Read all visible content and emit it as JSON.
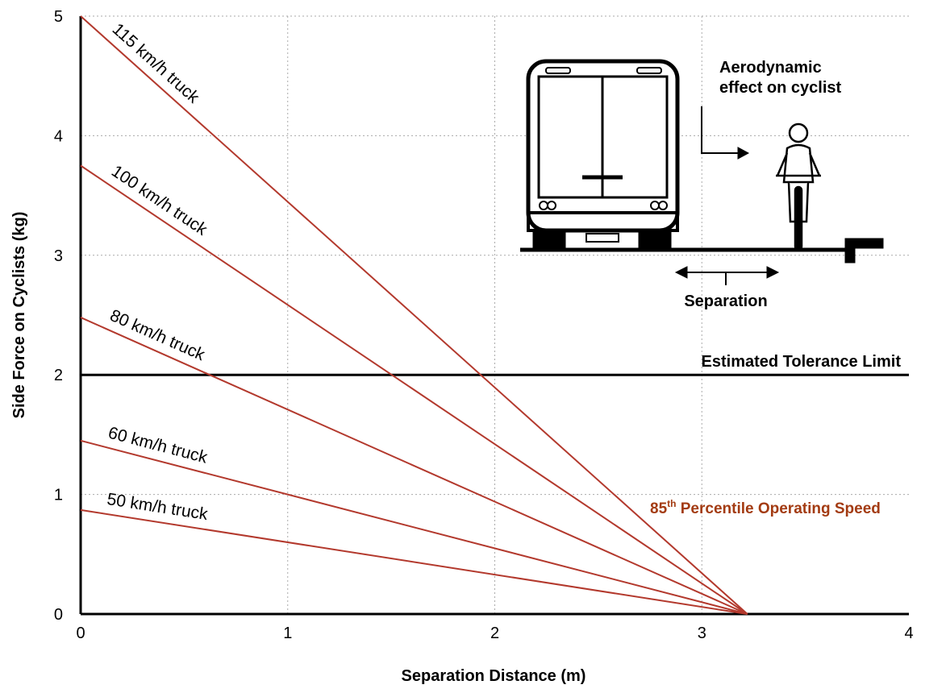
{
  "chart_data": {
    "type": "line",
    "x_label": "Separation Distance (m)",
    "y_label": "Side Force on Cyclists (kg)",
    "x": [
      0,
      3.22
    ],
    "series": [
      {
        "name": "115 km/h truck",
        "color": "#b3392d",
        "values": [
          5,
          0
        ]
      },
      {
        "name": "100 km/h truck",
        "color": "#b3392d",
        "values": [
          3.75,
          0
        ]
      },
      {
        "name": "80 km/h truck",
        "color": "#b3392d",
        "values": [
          2.48,
          0
        ]
      },
      {
        "name": "60 km/h truck",
        "color": "#b3392d",
        "values": [
          1.45,
          0
        ]
      },
      {
        "name": "50 km/h truck",
        "color": "#b3392d",
        "values": [
          0.87,
          0
        ]
      }
    ],
    "reference_line": {
      "value": 2,
      "label": "Estimated Tolerance Limit",
      "color": "#000000"
    },
    "annotation": {
      "parts": [
        "85",
        "th",
        " Percentile Operating Speed"
      ],
      "color": "#a33b12"
    },
    "inset": {
      "effect_label": [
        "Aerodynamic",
        "effect on cyclist"
      ],
      "separation_label": "Separation"
    },
    "xlim": [
      0,
      4
    ],
    "ylim": [
      0,
      5
    ],
    "xticks": [
      0,
      1,
      2,
      3,
      4
    ],
    "yticks": [
      0,
      1,
      2,
      3,
      4,
      5
    ],
    "grid": true
  }
}
